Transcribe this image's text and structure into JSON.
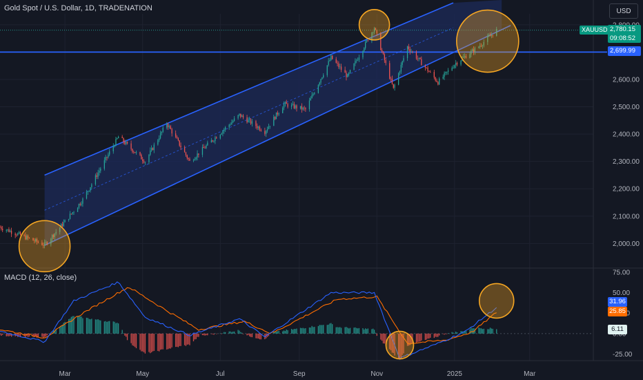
{
  "header": {
    "title": "Gold Spot / U.S. Dollar, 1D, TRADENATION",
    "currency_button": "USD"
  },
  "badges": {
    "symbol": "XAUUSD",
    "last_price": "2,780.15",
    "countdown": "09:08:52",
    "level_label": "2,699.99"
  },
  "macd_badges": {
    "macd": "31.96",
    "signal": "25.85",
    "histogram": "6.11"
  },
  "colors": {
    "background": "#141823",
    "up_candle": "#26a69a",
    "down_candle": "#ef5350",
    "channel_line": "#2962ff",
    "channel_fill": "#1c2a58",
    "highlight_circle": "#f5a623",
    "macd_line": "#2962ff",
    "signal_line": "#ff6d00"
  },
  "chart_data": [
    {
      "type": "candlestick",
      "title": "Gold Spot / U.S. Dollar, 1D, TRADENATION",
      "x_tick_labels": [
        "Mar",
        "May",
        "Jul",
        "Sep",
        "Nov",
        "2025",
        "Mar"
      ],
      "y_tick_labels": [
        "2,800.00",
        "2,700.00",
        "2,600.00",
        "2,500.00",
        "2,400.00",
        "2,300.00",
        "2,200.00",
        "2,100.00",
        "2,000.00"
      ],
      "ylim": [
        1910,
        2840
      ],
      "x_range": [
        "2024-01-10",
        "2025-04-20"
      ],
      "grid": true,
      "approx_close_path": [
        {
          "date": "2024-01-10",
          "close": 2060
        },
        {
          "date": "2024-02-14",
          "close": 1995
        },
        {
          "date": "2024-03-01",
          "close": 2080
        },
        {
          "date": "2024-03-15",
          "close": 2160
        },
        {
          "date": "2024-04-12",
          "close": 2390
        },
        {
          "date": "2024-05-03",
          "close": 2300
        },
        {
          "date": "2024-05-20",
          "close": 2440
        },
        {
          "date": "2024-06-07",
          "close": 2300
        },
        {
          "date": "2024-07-16",
          "close": 2470
        },
        {
          "date": "2024-08-05",
          "close": 2410
        },
        {
          "date": "2024-08-20",
          "close": 2510
        },
        {
          "date": "2024-09-06",
          "close": 2490
        },
        {
          "date": "2024-09-26",
          "close": 2680
        },
        {
          "date": "2024-10-09",
          "close": 2610
        },
        {
          "date": "2024-10-30",
          "close": 2790
        },
        {
          "date": "2024-11-14",
          "close": 2565
        },
        {
          "date": "2024-11-25",
          "close": 2720
        },
        {
          "date": "2024-12-19",
          "close": 2590
        },
        {
          "date": "2025-01-02",
          "close": 2660
        },
        {
          "date": "2025-01-20",
          "close": 2720
        },
        {
          "date": "2025-02-03",
          "close": 2780
        }
      ],
      "last_price": 2780.15,
      "annotations": {
        "horizontal_level": 2699.99,
        "channel": {
          "lower": [
            {
              "date": "2024-02-14",
              "value": 1993
            },
            {
              "date": "2025-02-07",
              "value": 2782
            }
          ],
          "upper": [
            {
              "date": "2024-02-14",
              "value": 2250
            },
            {
              "date": "2024-12-31",
              "value": 2880
            }
          ]
        },
        "highlight_circles": [
          "2024-02-14 low near 1995",
          "2024-10-30 high near 2790",
          "2025-01-27 near 2740"
        ]
      }
    },
    {
      "type": "macd",
      "title": "MACD (12, 26, close)",
      "y_tick_labels": [
        "75.00",
        "50.00",
        "25.00",
        "0.00",
        "-25.00"
      ],
      "ylim": [
        -33,
        80
      ],
      "series": [
        {
          "name": "MACD",
          "approx_points": [
            {
              "date": "2024-01-10",
              "value": 3
            },
            {
              "date": "2024-02-14",
              "value": -10
            },
            {
              "date": "2024-03-08",
              "value": 40
            },
            {
              "date": "2024-04-12",
              "value": 63
            },
            {
              "date": "2024-05-03",
              "value": 20
            },
            {
              "date": "2024-06-07",
              "value": -2
            },
            {
              "date": "2024-07-16",
              "value": 18
            },
            {
              "date": "2024-08-05",
              "value": -4
            },
            {
              "date": "2024-09-26",
              "value": 50
            },
            {
              "date": "2024-10-30",
              "value": 50
            },
            {
              "date": "2024-11-19",
              "value": -30
            },
            {
              "date": "2024-12-19",
              "value": -12
            },
            {
              "date": "2025-01-10",
              "value": 3
            },
            {
              "date": "2025-02-03",
              "value": 32
            }
          ]
        },
        {
          "name": "Signal",
          "approx_points": [
            {
              "date": "2024-01-10",
              "value": 5
            },
            {
              "date": "2024-02-14",
              "value": -5
            },
            {
              "date": "2024-03-15",
              "value": 25
            },
            {
              "date": "2024-04-20",
              "value": 57
            },
            {
              "date": "2024-05-20",
              "value": 28
            },
            {
              "date": "2024-06-14",
              "value": 5
            },
            {
              "date": "2024-07-20",
              "value": 15
            },
            {
              "date": "2024-08-10",
              "value": 0
            },
            {
              "date": "2024-10-01",
              "value": 42
            },
            {
              "date": "2024-11-01",
              "value": 45
            },
            {
              "date": "2024-11-25",
              "value": -12
            },
            {
              "date": "2024-12-25",
              "value": -8
            },
            {
              "date": "2025-01-15",
              "value": 2
            },
            {
              "date": "2025-02-03",
              "value": 26
            }
          ]
        }
      ],
      "last_values": {
        "macd": 31.96,
        "signal": 25.85,
        "histogram": 6.11
      },
      "highlight_circles": [
        "2024-11-19 trough near -30",
        "2025-02-03 near 30"
      ]
    }
  ]
}
